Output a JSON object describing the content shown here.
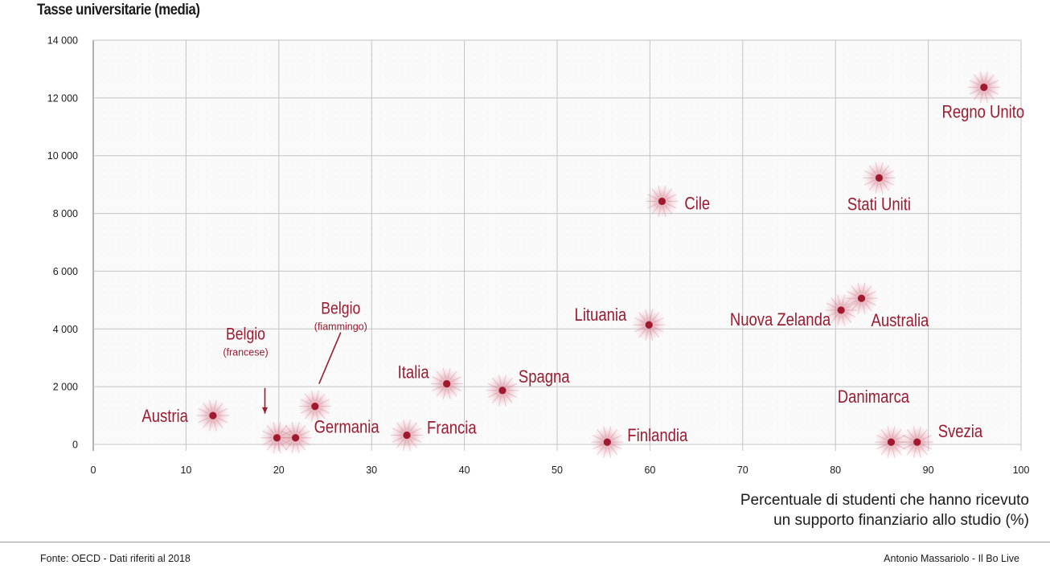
{
  "chart_data": {
    "type": "scatter",
    "ylabel": "Tasse universitarie (media)",
    "xlabel_lines": [
      "Percentuale di studenti che hanno ricevuto",
      "un supporto finanziario allo studio (%)"
    ],
    "xlim": [
      0,
      100
    ],
    "ylim": [
      0,
      14000
    ],
    "x_ticks": [
      "0",
      "10",
      "20",
      "30",
      "40",
      "50",
      "60",
      "70",
      "80",
      "90",
      "100"
    ],
    "y_ticks": [
      "0",
      "2 000",
      "4 000",
      "6 000",
      "8 000",
      "10 000",
      "12 000",
      "14 000"
    ],
    "grid": true,
    "point_color": "#a0192e",
    "points": [
      {
        "name": "Austria",
        "x": 12.9,
        "y": 1000
      },
      {
        "name": "Belgio",
        "note": "(francese)",
        "x": 19.8,
        "y": 230
      },
      {
        "name": "Germania",
        "x": 21.8,
        "y": 230
      },
      {
        "name": "Belgio",
        "note": "(fiammingo)",
        "x": 23.9,
        "y": 1320
      },
      {
        "name": "Francia",
        "x": 33.8,
        "y": 320
      },
      {
        "name": "Italia",
        "x": 38.1,
        "y": 2100
      },
      {
        "name": "Spagna",
        "x": 44.1,
        "y": 1870
      },
      {
        "name": "Finlandia",
        "x": 55.4,
        "y": 80
      },
      {
        "name": "Lituania",
        "x": 59.9,
        "y": 4140
      },
      {
        "name": "Cile",
        "x": 61.3,
        "y": 8420
      },
      {
        "name": "Nuova Zelanda",
        "x": 80.6,
        "y": 4650
      },
      {
        "name": "Australia",
        "x": 82.8,
        "y": 5060
      },
      {
        "name": "Stati Uniti",
        "x": 84.7,
        "y": 9230
      },
      {
        "name": "Danimarca",
        "x": 86.0,
        "y": 80
      },
      {
        "name": "Svezia",
        "x": 88.8,
        "y": 80
      },
      {
        "name": "Regno Unito",
        "x": 96.0,
        "y": 12370
      }
    ]
  },
  "footer": {
    "source": "Fonte: OECD - Dati riferiti al 2018",
    "credit": "Antonio Massariolo - Il Bo Live"
  }
}
